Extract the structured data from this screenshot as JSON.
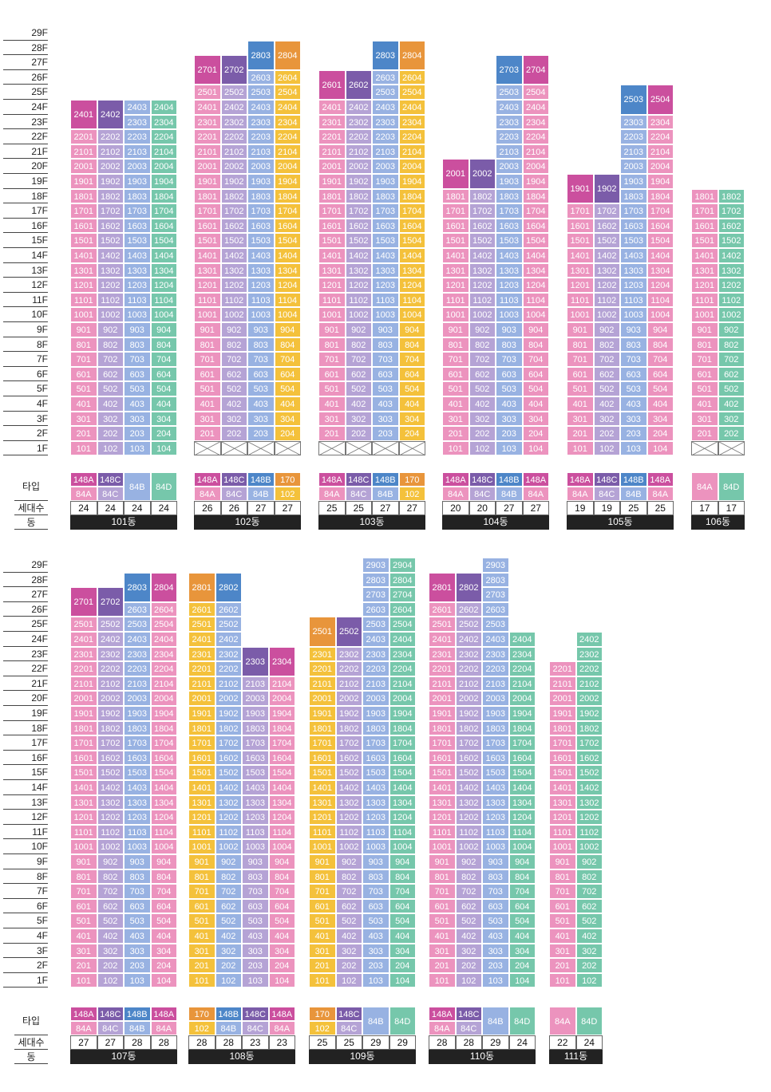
{
  "colors": {
    "148A": "#cb4f9e",
    "148C": "#7b5ca9",
    "148B": "#4d86c8",
    "170": "#e8953b",
    "84A": "#ec93be",
    "84C": "#b5a3d5",
    "84B": "#98b2e2",
    "84D": "#76c7ab",
    "102": "#f4c13b",
    "dong_bar": "#222222"
  },
  "labels": {
    "type": "타입",
    "households": "세대수",
    "dong": "동"
  },
  "sections": [
    {
      "floor_labels": [
        "29F",
        "28F",
        "27F",
        "26F",
        "25F",
        "24F",
        "23F",
        "22F",
        "21F",
        "20F",
        "19F",
        "18F",
        "17F",
        "16F",
        "15F",
        "14F",
        "13F",
        "12F",
        "11F",
        "10F",
        "9F",
        "8F",
        "7F",
        "6F",
        "5F",
        "4F",
        "3F",
        "2F",
        "1F"
      ],
      "buildings": [
        {
          "name": "101동",
          "floors": [
            24,
            24,
            24,
            24
          ],
          "types": [
            [
              "148A",
              "84A"
            ],
            [
              "148C",
              "84C"
            ],
            [
              "84B"
            ],
            [
              "84D"
            ]
          ],
          "counts": [
            24,
            24,
            24,
            24
          ],
          "pilotis": false
        },
        {
          "name": "102동",
          "floors": [
            27,
            27,
            28,
            28
          ],
          "types": [
            [
              "148A",
              "84A"
            ],
            [
              "148C",
              "84C"
            ],
            [
              "148B",
              "84B"
            ],
            [
              "170",
              "102"
            ]
          ],
          "counts": [
            26,
            26,
            27,
            27
          ],
          "pilotis": true
        },
        {
          "name": "103동",
          "floors": [
            26,
            26,
            28,
            28
          ],
          "types": [
            [
              "148A",
              "84A"
            ],
            [
              "148C",
              "84C"
            ],
            [
              "148B",
              "84B"
            ],
            [
              "170",
              "102"
            ]
          ],
          "counts": [
            25,
            25,
            27,
            27
          ],
          "pilotis": true
        },
        {
          "name": "104동",
          "floors": [
            20,
            20,
            27,
            27
          ],
          "types": [
            [
              "148A",
              "84A"
            ],
            [
              "148C",
              "84C"
            ],
            [
              "148B",
              "84B"
            ],
            [
              "148A",
              "84A"
            ]
          ],
          "counts": [
            20,
            20,
            27,
            27
          ],
          "pilotis": false
        },
        {
          "name": "105동",
          "floors": [
            19,
            19,
            25,
            25
          ],
          "types": [
            [
              "148A",
              "84A"
            ],
            [
              "148C",
              "84C"
            ],
            [
              "148B",
              "84B"
            ],
            [
              "148A",
              "84A"
            ]
          ],
          "counts": [
            19,
            19,
            25,
            25
          ],
          "pilotis": false
        },
        {
          "name": "106동",
          "floors": [
            18,
            18
          ],
          "types": [
            [
              "84A"
            ],
            [
              "84D"
            ]
          ],
          "counts": [
            17,
            17
          ],
          "pilotis": true
        }
      ]
    },
    {
      "floor_labels": [
        "29F",
        "28F",
        "27F",
        "26F",
        "25F",
        "24F",
        "23F",
        "22F",
        "21F",
        "20F",
        "19F",
        "18F",
        "17F",
        "16F",
        "15F",
        "14F",
        "13F",
        "12F",
        "11F",
        "10F",
        "9F",
        "8F",
        "7F",
        "6F",
        "5F",
        "4F",
        "3F",
        "2F",
        "1F"
      ],
      "buildings": [
        {
          "name": "107동",
          "floors": [
            27,
            27,
            28,
            28
          ],
          "types": [
            [
              "148A",
              "84A"
            ],
            [
              "148C",
              "84C"
            ],
            [
              "148B",
              "84B"
            ],
            [
              "148A",
              "84A"
            ]
          ],
          "counts": [
            27,
            27,
            28,
            28
          ]
        },
        {
          "name": "108동",
          "floors": [
            28,
            28,
            23,
            23
          ],
          "types": [
            [
              "170",
              "102"
            ],
            [
              "148B",
              "84B"
            ],
            [
              "148C",
              "84C"
            ],
            [
              "148A",
              "84A"
            ]
          ],
          "counts": [
            28,
            28,
            23,
            23
          ]
        },
        {
          "name": "109동",
          "floors": [
            25,
            25,
            29,
            29
          ],
          "types": [
            [
              "170",
              "102"
            ],
            [
              "148C",
              "84C"
            ],
            [
              "84B"
            ],
            [
              "84D"
            ]
          ],
          "counts": [
            25,
            25,
            29,
            29
          ]
        },
        {
          "name": "110동",
          "floors": [
            28,
            28,
            29,
            24
          ],
          "types": [
            [
              "148A",
              "84A"
            ],
            [
              "148C",
              "84C"
            ],
            [
              "84B"
            ],
            [
              "84D"
            ]
          ],
          "counts": [
            28,
            28,
            29,
            24
          ]
        },
        {
          "name": "111동",
          "floors": [
            22,
            24
          ],
          "types": [
            [
              "84A"
            ],
            [
              "84D"
            ]
          ],
          "counts": [
            22,
            24
          ]
        }
      ]
    }
  ]
}
